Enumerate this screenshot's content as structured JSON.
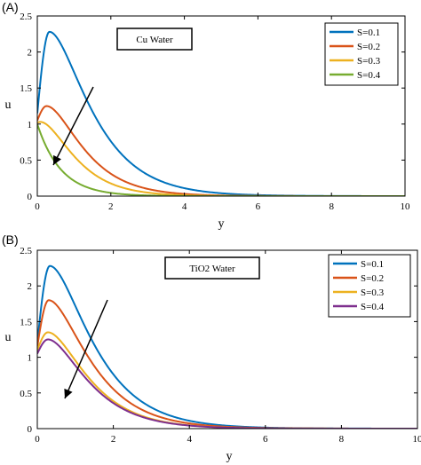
{
  "chart_data": [
    {
      "type": "line",
      "panel_label": "(A)",
      "annotation": "Cu Water",
      "xlabel": "y",
      "ylabel": "u",
      "xlim": [
        0,
        10
      ],
      "ylim": [
        0,
        2.5
      ],
      "x_ticks": [
        "0",
        "2",
        "4",
        "6",
        "8",
        "10"
      ],
      "y_ticks": [
        "0",
        "0.5",
        "1",
        "1.5",
        "2",
        "2.5"
      ],
      "legend_position": "top-right",
      "arrow_direction": "decreasing with S",
      "series": [
        {
          "name": "S=0.1",
          "color": "#0072BD",
          "u0": 1.15,
          "peak_x": 0.33,
          "peak_u": 2.28,
          "decay": 1.05
        },
        {
          "name": "S=0.2",
          "color": "#D95319",
          "u0": 1.05,
          "peak_x": 0.25,
          "peak_u": 1.25,
          "decay": 1.25
        },
        {
          "name": "S=0.3",
          "color": "#EDB120",
          "u0": 1.02,
          "peak_x": 0.08,
          "peak_u": 1.03,
          "decay": 1.4
        },
        {
          "name": "S=0.4",
          "color": "#77AC30",
          "u0": 1.0,
          "peak_x": 0.0,
          "peak_u": 1.0,
          "decay": 1.55
        }
      ]
    },
    {
      "type": "line",
      "panel_label": "(B)",
      "annotation": "TiO2 Water",
      "xlabel": "y",
      "ylabel": "u",
      "xlim": [
        0,
        10
      ],
      "ylim": [
        0,
        2.5
      ],
      "x_ticks": [
        "0",
        "2",
        "4",
        "6",
        "8",
        "10"
      ],
      "y_ticks": [
        "0",
        "0.5",
        "1",
        "1.5",
        "2",
        "2.5"
      ],
      "legend_position": "top-right",
      "arrow_direction": "decreasing with S",
      "series": [
        {
          "name": "S=0.1",
          "color": "#0072BD",
          "u0": 1.2,
          "peak_x": 0.33,
          "peak_u": 2.28,
          "decay": 1.05
        },
        {
          "name": "S=0.2",
          "color": "#D95319",
          "u0": 1.15,
          "peak_x": 0.3,
          "peak_u": 1.8,
          "decay": 1.1
        },
        {
          "name": "S=0.3",
          "color": "#EDB120",
          "u0": 1.1,
          "peak_x": 0.28,
          "peak_u": 1.35,
          "decay": 1.15
        },
        {
          "name": "S=0.4",
          "color": "#7E2F8E",
          "u0": 1.05,
          "peak_x": 0.28,
          "peak_u": 1.25,
          "decay": 1.15
        }
      ]
    }
  ]
}
